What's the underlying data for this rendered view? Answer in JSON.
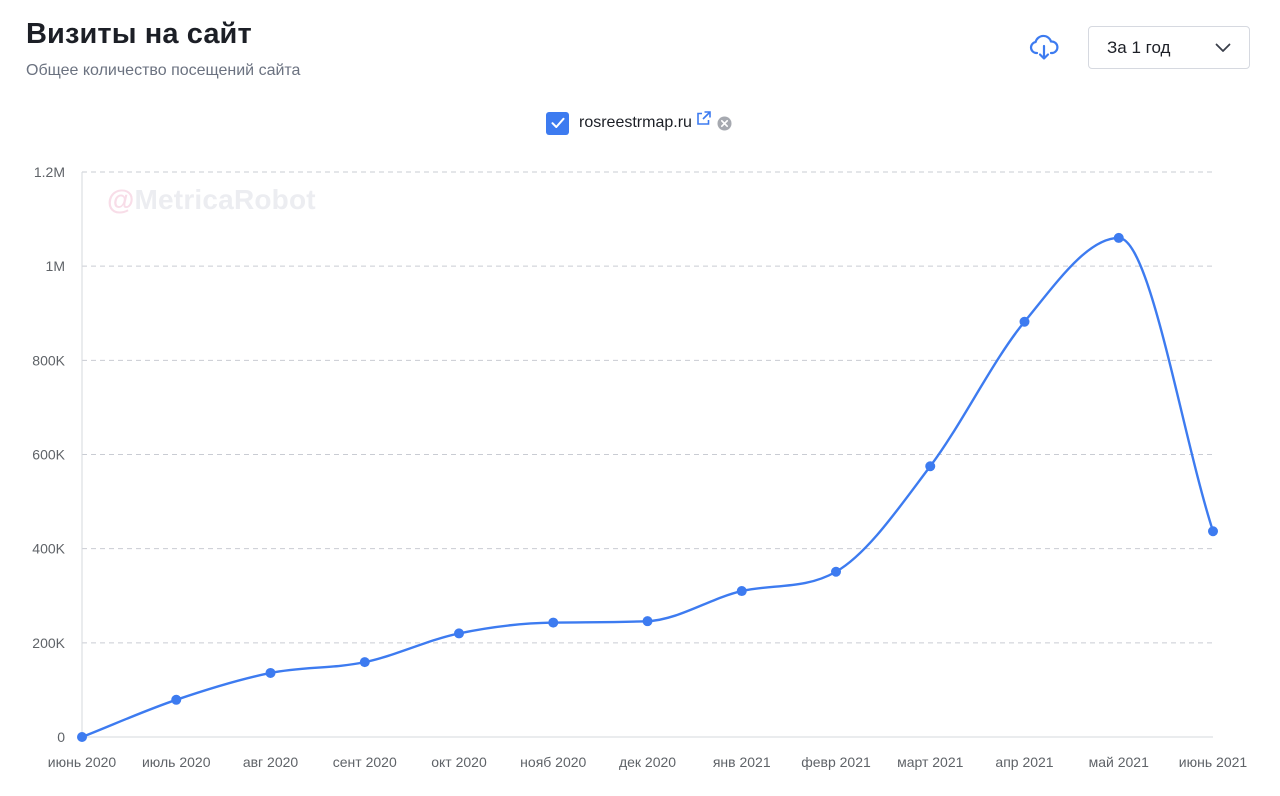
{
  "header": {
    "title": "Визиты на сайт",
    "subtitle": "Общее количество посещений сайта"
  },
  "toolbar": {
    "download_icon": "cloud-download-icon",
    "period_label": "За 1 год",
    "period_icon": "chevron-down-icon"
  },
  "legend": {
    "site_label": "rosreestrmap.ru",
    "checked": true
  },
  "watermark": {
    "at": "@",
    "text": "MetricaRobot"
  },
  "colors": {
    "accent": "#3d7bf0",
    "grid": "#c9ccd3",
    "text_muted": "#6b7280"
  },
  "chart_data": {
    "type": "line",
    "title": "Визиты на сайт",
    "subtitle": "Общее количество посещений сайта",
    "xlabel": "",
    "ylabel": "",
    "categories": [
      "июнь 2020",
      "июль 2020",
      "авг 2020",
      "сент 2020",
      "окт 2020",
      "нояб 2020",
      "дек 2020",
      "янв 2021",
      "февр 2021",
      "март 2021",
      "апр 2021",
      "май 2021",
      "июнь 2021"
    ],
    "series": [
      {
        "name": "rosreestrmap.ru",
        "values": [
          0,
          79000,
          136000,
          159000,
          220000,
          243000,
          246000,
          310000,
          351000,
          575000,
          882000,
          1060000,
          437000
        ]
      }
    ],
    "ylim": [
      0,
      1200000
    ],
    "yticks": [
      0,
      200000,
      400000,
      600000,
      800000,
      1000000,
      1200000
    ],
    "ytick_labels": [
      "0",
      "200K",
      "400K",
      "600K",
      "800K",
      "1M",
      "1.2M"
    ],
    "grid": true,
    "legend_position": "top-center"
  }
}
